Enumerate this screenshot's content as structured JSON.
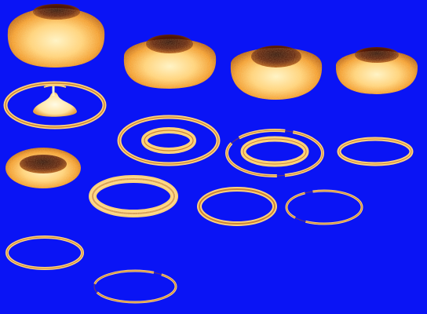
{
  "image": {
    "background_color": "#0a14f5",
    "shape_colors": {
      "highlight": "#fff6cc",
      "light": "#ffd27a",
      "mid": "#f29a2a",
      "dark": "#a8500c",
      "shadow": "#3a0d04"
    },
    "subjects": [
      {
        "kind": "toroid",
        "label": "toroid-1"
      },
      {
        "kind": "toroid",
        "label": "toroid-2"
      },
      {
        "kind": "toroid",
        "label": "toroid-3"
      },
      {
        "kind": "toroid",
        "label": "toroid-4"
      },
      {
        "kind": "ring-with-core",
        "label": "ring-with-core-1"
      },
      {
        "kind": "double-ring",
        "label": "double-ring-1"
      },
      {
        "kind": "double-ring",
        "label": "double-ring-2"
      },
      {
        "kind": "ring",
        "label": "ring-1"
      },
      {
        "kind": "thick-ring",
        "label": "thick-ring-1"
      },
      {
        "kind": "thick-ring",
        "label": "thick-ring-2"
      },
      {
        "kind": "ring",
        "label": "ring-2"
      },
      {
        "kind": "ring",
        "label": "ring-3"
      },
      {
        "kind": "ring",
        "label": "ring-4"
      },
      {
        "kind": "ring",
        "label": "ring-5"
      }
    ]
  }
}
